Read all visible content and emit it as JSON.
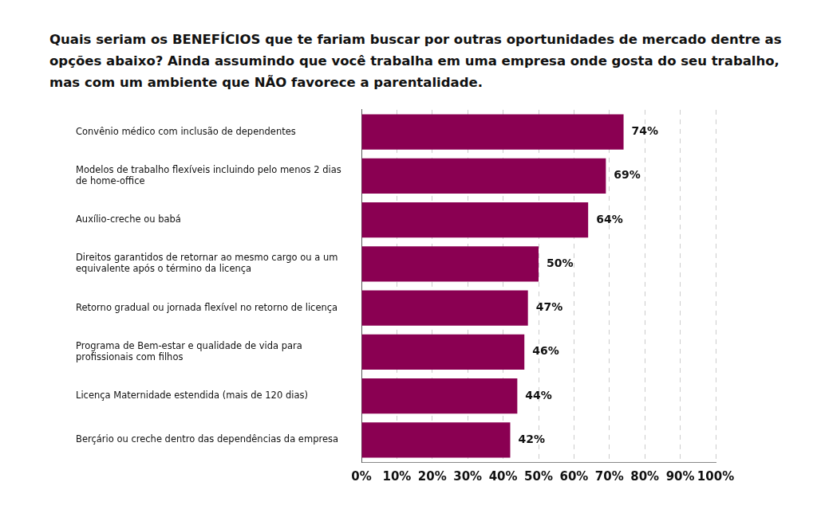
{
  "chart_data": {
    "type": "bar",
    "orientation": "horizontal",
    "title": "Quais seriam os BENEFÍCIOS que te fariam buscar por outras oportunidades de mercado dentre as opções abaixo? Ainda assumindo que você trabalha em uma empresa onde gosta do seu trabalho, mas com um ambiente que NÃO favorece a parentalidade.",
    "categories": [
      "Convênio médico com inclusão de dependentes",
      "Modelos de trabalho flexíveis incluindo pelo menos 2 dias de home-office",
      "Auxílio-creche ou babá",
      "Direitos garantidos de retornar ao mesmo cargo ou a um equivalente após o término da licença",
      "Retorno gradual ou jornada flexível no retorno de licença",
      "Programa de Bem-estar e qualidade de vida para profissionais com filhos",
      "Licença Maternidade estendida (mais de 120 dias)",
      "Berçário ou creche dentro das dependências da empresa"
    ],
    "values": [
      74,
      69,
      64,
      50,
      47,
      46,
      44,
      42
    ],
    "value_labels": [
      "74%",
      "69%",
      "64%",
      "50%",
      "47%",
      "46%",
      "44%",
      "42%"
    ],
    "data_labels": true,
    "color": "#8a0052",
    "xlim": [
      0,
      100
    ],
    "xticks": [
      {
        "value": 0,
        "label": "0%"
      },
      {
        "value": 10,
        "label": "10%"
      },
      {
        "value": 20,
        "label": "20%"
      },
      {
        "value": 30,
        "label": "30%"
      },
      {
        "value": 40,
        "label": "40%"
      },
      {
        "value": 50,
        "label": "50%"
      },
      {
        "value": 60,
        "label": "60%"
      },
      {
        "value": 70,
        "label": "70%"
      },
      {
        "value": 80,
        "label": "80%"
      },
      {
        "value": 90,
        "label": "90%"
      },
      {
        "value": 100,
        "label": "100%"
      }
    ],
    "grid": true
  }
}
